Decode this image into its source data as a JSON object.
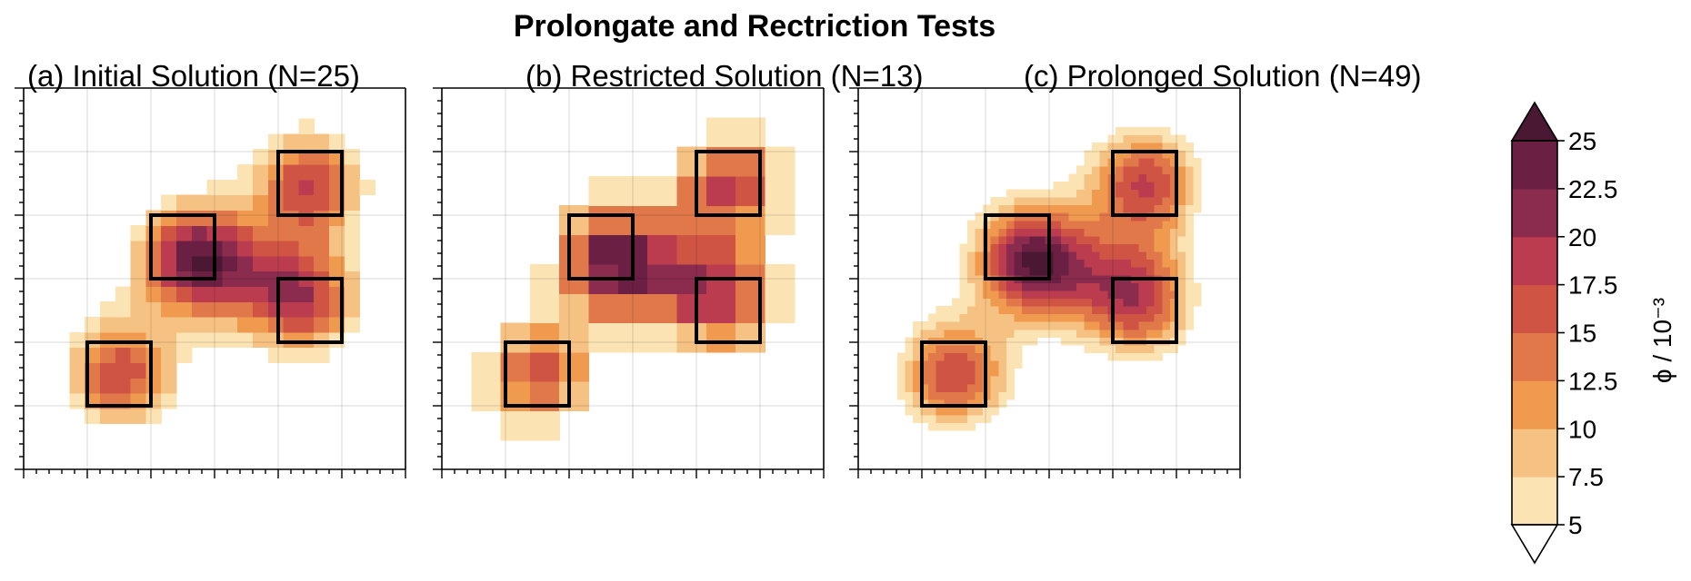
{
  "chart_data": {
    "type": "filled-contour",
    "title": "Prolongate and Rectriction Tests",
    "panels": [
      {
        "label": "(a) Initial Solution (N=25)",
        "n": 25
      },
      {
        "label": "(b) Restricted Solution (N=13)",
        "n": 13
      },
      {
        "label": "(c) Prolonged Solution (N=49)",
        "n": 49
      }
    ],
    "xlim": [
      0,
      6
    ],
    "ylim": [
      0,
      6
    ],
    "grid": true,
    "boxes": [
      {
        "x0": 1,
        "x1": 2,
        "y0": 1,
        "y1": 2
      },
      {
        "x0": 2,
        "x1": 3,
        "y0": 3,
        "y1": 4
      },
      {
        "x0": 4,
        "x1": 5,
        "y0": 4,
        "y1": 5
      },
      {
        "x0": 4,
        "x1": 5,
        "y0": 2,
        "y1": 3
      }
    ],
    "sources": [
      {
        "x": 1.5,
        "y": 1.5,
        "a": 17.0
      },
      {
        "x": 2.7,
        "y": 3.3,
        "a": 23.0
      },
      {
        "x": 4.5,
        "y": 4.5,
        "a": 17.5
      },
      {
        "x": 4.4,
        "y": 2.7,
        "a": 18.0
      },
      {
        "x": 3.5,
        "y": 3.1,
        "a": 6.0
      }
    ],
    "colorbar": {
      "levels": [
        5,
        7.5,
        10,
        12.5,
        15,
        17.5,
        20,
        22.5,
        25
      ],
      "tick_labels": [
        "5",
        "7.5",
        "10",
        "12.5",
        "15",
        "17.5",
        "20",
        "22.5",
        "25"
      ],
      "colors": [
        "#fce3b3",
        "#f6c283",
        "#f09a50",
        "#e1784a",
        "#d05444",
        "#bb3b4f",
        "#8b2b4e",
        "#6b1f42",
        "#4a1833"
      ],
      "extend": "both",
      "label": "ϕ / 10⁻³"
    }
  }
}
